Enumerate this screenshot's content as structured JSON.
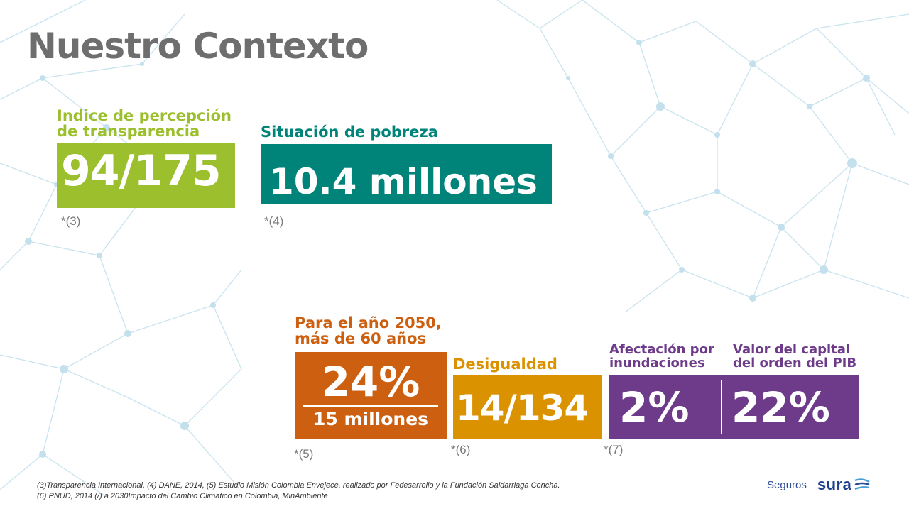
{
  "title": "Nuestro Contexto",
  "colors": {
    "green": "#9cbf2e",
    "teal": "#00847a",
    "orange": "#cc6010",
    "gold": "#db9200",
    "purple": "#6e3b8a",
    "title_gray": "#6e6e6e",
    "network_blue": "#b9dbe9"
  },
  "cards": {
    "transparency": {
      "label_line1": "Indice de percepción",
      "label_line2": "de transparencia",
      "value": "94/175",
      "note": "*(3)"
    },
    "poverty": {
      "label": "Situación de pobreza",
      "value": "10.4 millones",
      "note": "*(4)"
    },
    "aging": {
      "label_line1": "Para el año 2050,",
      "label_line2": "más de 60 años",
      "value": "24%",
      "subvalue": "15 millones",
      "note": "*(5)"
    },
    "inequality": {
      "label": "Desigualdad",
      "value": "14/134",
      "note": "*(6)"
    },
    "floods": {
      "label1_line1": "Afectación por",
      "label1_line2": "inundaciones",
      "label2_line1": "Valor del capital",
      "label2_line2": "del orden del PIB",
      "value1": "2%",
      "value2": "22%",
      "note": "*(7)"
    }
  },
  "footnotes": {
    "line1": "(3)Transparencia Internacional, (4) DANE, 2014, (5) Estudio Misión Colombia Envejece, realizado por Fedesarrollo y la Fundación Saldarriaga Concha.",
    "line2": "(6) PNUD, 2014 (/) a 2030Impacto del Cambio Climatico en Colombia, MinAmbiente"
  },
  "logo": {
    "prefix": "Seguros",
    "brand": "SURA",
    "icon": "sura-wing-icon"
  }
}
